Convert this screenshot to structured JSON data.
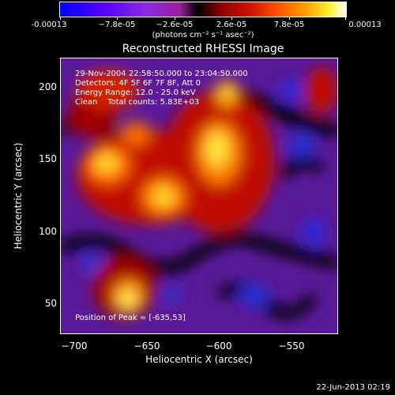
{
  "colorbar": {
    "labels": [
      "-0.00013",
      "−7.8e-05",
      "−2.6e-05",
      "2.6e-05",
      "7.8e-05",
      "0.00013"
    ],
    "unit": "(photons cm⁻² s⁻¹ asec⁻²)"
  },
  "plot": {
    "title": "Reconstructed RHESSI Image",
    "xlabel": "Heliocentric X (arcsec)",
    "ylabel": "Heliocentric Y (arcsec)",
    "xticks": [
      "−700",
      "−650",
      "−600",
      "−550"
    ],
    "yticks": [
      "200",
      "150",
      "100",
      "50"
    ]
  },
  "info": {
    "time": "29-Nov-2004 22:58:50.000 to 23:04:50.000",
    "detectors": "Detectors: 4F 5F 6F 7F 8F, Att 0",
    "energy": "Energy Range: 12.0 - 25.0 keV",
    "clean": "Clean    Total counts: 5.83E+03",
    "peak": "Position of Peak = [-635,53]"
  },
  "footer": "22-Jun-2013 02:19",
  "colors": {
    "background": "#000000",
    "text": "#ffffff"
  }
}
